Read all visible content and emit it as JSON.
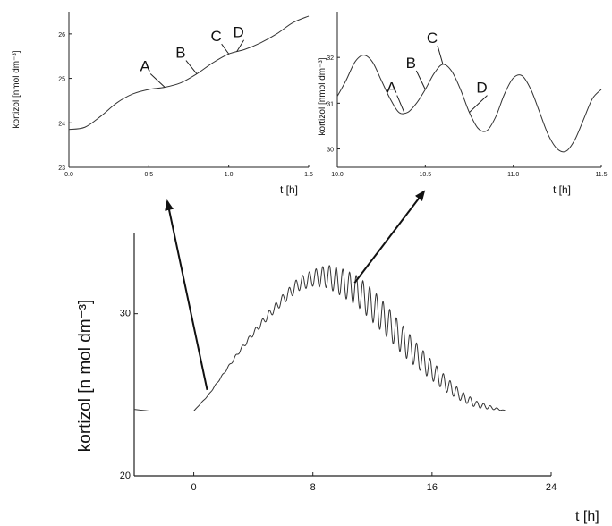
{
  "chart_data": [
    {
      "id": "inset-left",
      "type": "line",
      "ylabel": "kortizol [nmol dm⁻³]",
      "xlabel": "t [h]",
      "xlim": [
        0.0,
        1.5
      ],
      "ylim": [
        23,
        26.5
      ],
      "xticks": [
        "0.0",
        "0.5",
        "1.0",
        "1.5"
      ],
      "yticks": [
        "23",
        "24",
        "25",
        "26"
      ],
      "x": [
        0.0,
        0.1,
        0.2,
        0.3,
        0.4,
        0.5,
        0.6,
        0.7,
        0.8,
        0.9,
        1.0,
        1.1,
        1.2,
        1.3,
        1.4,
        1.5
      ],
      "y": [
        23.85,
        23.9,
        24.15,
        24.45,
        24.65,
        24.75,
        24.8,
        24.9,
        25.1,
        25.35,
        25.55,
        25.65,
        25.8,
        26.0,
        26.25,
        26.4
      ],
      "annotations": [
        {
          "label": "A",
          "x": 0.6,
          "y": 24.8
        },
        {
          "label": "B",
          "x": 0.8,
          "y": 25.1
        },
        {
          "label": "C",
          "x": 1.0,
          "y": 25.55
        },
        {
          "label": "D",
          "x": 1.05,
          "y": 25.6
        }
      ],
      "grid": false
    },
    {
      "id": "inset-right",
      "type": "line",
      "ylabel": "kortizol [nmol dm⁻³]",
      "xlabel": "t [h]",
      "xlim": [
        10.0,
        11.5
      ],
      "ylim": [
        29.6,
        33.0
      ],
      "xticks": [
        "10.0",
        "10.5",
        "11.0",
        "11.5"
      ],
      "yticks": [
        "30",
        "31",
        "32"
      ],
      "x": [
        10.0,
        10.05,
        10.1,
        10.15,
        10.2,
        10.25,
        10.3,
        10.35,
        10.4,
        10.45,
        10.5,
        10.55,
        10.6,
        10.65,
        10.7,
        10.75,
        10.8,
        10.85,
        10.9,
        10.95,
        11.0,
        11.05,
        11.1,
        11.15,
        11.2,
        11.25,
        11.3,
        11.35,
        11.4,
        11.45,
        11.5
      ],
      "y": [
        31.15,
        31.5,
        31.9,
        32.05,
        31.9,
        31.5,
        31.1,
        30.8,
        30.8,
        31.0,
        31.3,
        31.65,
        31.85,
        31.7,
        31.3,
        30.8,
        30.45,
        30.4,
        30.7,
        31.2,
        31.55,
        31.6,
        31.3,
        30.8,
        30.3,
        30.0,
        29.95,
        30.2,
        30.65,
        31.1,
        31.3
      ],
      "annotations": [
        {
          "label": "A",
          "x": 10.38,
          "y": 30.8
        },
        {
          "label": "B",
          "x": 10.5,
          "y": 31.3
        },
        {
          "label": "C",
          "x": 10.6,
          "y": 31.85
        },
        {
          "label": "D",
          "x": 10.75,
          "y": 30.8
        }
      ],
      "grid": false
    },
    {
      "id": "main",
      "type": "line",
      "ylabel": "kortizol [n mol dm⁻³]",
      "xlabel": "t [h]",
      "xlim": [
        -4,
        24
      ],
      "ylim": [
        20,
        35
      ],
      "xticks": [
        "0",
        "8",
        "16",
        "24"
      ],
      "yticks": [
        "20",
        "30"
      ],
      "baseline": {
        "from": -4,
        "to": 0,
        "y": 24
      },
      "envelope": {
        "x": [
          0,
          1,
          2,
          3,
          4,
          5,
          6,
          7,
          8,
          9,
          10,
          11,
          12,
          13,
          14,
          15,
          16,
          17,
          18,
          19,
          20,
          21,
          22,
          24
        ],
        "y": [
          24,
          25,
          26.3,
          27.6,
          28.8,
          29.9,
          30.9,
          31.8,
          32.2,
          32.3,
          31.9,
          31.4,
          30.5,
          29.5,
          28.4,
          27.4,
          26.5,
          25.6,
          24.9,
          24.4,
          24.2,
          24.0,
          24.0,
          24.0
        ]
      },
      "oscillation": {
        "period_h": 0.45,
        "amplitude": [
          [
            0,
            0
          ],
          [
            2,
            0.05
          ],
          [
            4,
            0.15
          ],
          [
            6,
            0.3
          ],
          [
            8,
            0.5
          ],
          [
            9,
            0.7
          ],
          [
            10,
            0.85
          ],
          [
            12,
            1.0
          ],
          [
            14,
            0.9
          ],
          [
            16,
            0.6
          ],
          [
            18,
            0.3
          ],
          [
            20,
            0.1
          ],
          [
            21,
            0
          ],
          [
            24,
            0
          ]
        ]
      },
      "grid": false
    }
  ],
  "arrows": [
    {
      "from_panel": "main",
      "from": [
        0.9,
        25.3
      ],
      "to_panel": "inset-left"
    },
    {
      "from_panel": "main",
      "from": [
        10.8,
        31.9
      ],
      "to_panel": "inset-right"
    }
  ]
}
